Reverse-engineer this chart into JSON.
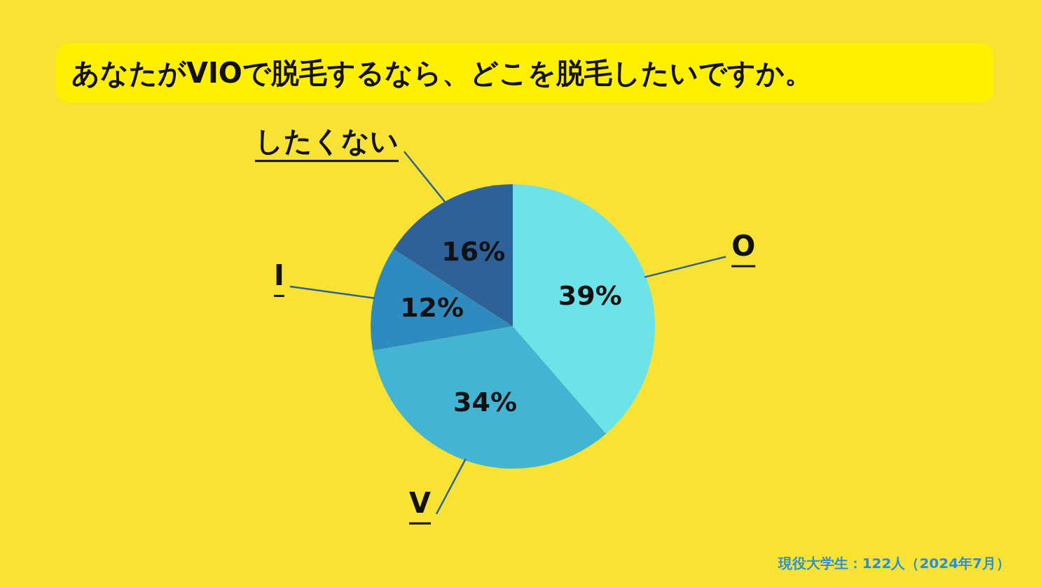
{
  "chart_data": {
    "type": "pie",
    "title": "あなたがVIOで脱毛するなら、どこを脱毛したいですか。",
    "categories": [
      "O",
      "V",
      "I",
      "したくない"
    ],
    "values": [
      39,
      34,
      12,
      16
    ],
    "value_labels": [
      "39%",
      "34%",
      "12%",
      "16%"
    ],
    "colors": [
      "#6ce3e8",
      "#42b5d4",
      "#2e8bbf",
      "#2e6099"
    ],
    "legend": false,
    "annotations": [
      "現役大学生：122人（2024年7月）"
    ]
  }
}
